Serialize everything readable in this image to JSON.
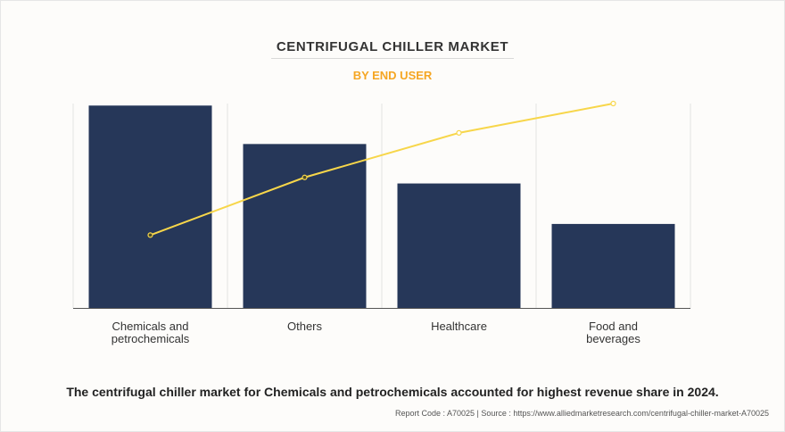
{
  "header": {
    "title": "CENTRIFUGAL CHILLER MARKET",
    "subtitle": "BY END USER"
  },
  "chart_data": {
    "type": "bar",
    "title": "CENTRIFUGAL CHILLER MARKET",
    "subtitle": "BY END USER",
    "categories": [
      [
        "Chemicals and",
        "petrochemicals"
      ],
      [
        "Others"
      ],
      [
        "Healthcare"
      ],
      [
        "Food and",
        "beverages"
      ]
    ],
    "series": [
      {
        "type": "bar",
        "values": [
          100,
          81,
          61.5,
          41.5
        ],
        "color": "#263759"
      },
      {
        "type": "line",
        "values": [
          36,
          64.5,
          86.5,
          101
        ],
        "color": "#f7d64a"
      }
    ],
    "ylim": [
      0,
      101
    ],
    "grid": "vertical",
    "legend": "none"
  },
  "footer": {
    "caption": "The centrifugal chiller market for Chemicals and petrochemicals accounted for highest revenue share in 2024.",
    "source": "Report Code : A70025  |  Source : https://www.alliedmarketresearch.com/centrifugal-chiller-market-A70025"
  }
}
